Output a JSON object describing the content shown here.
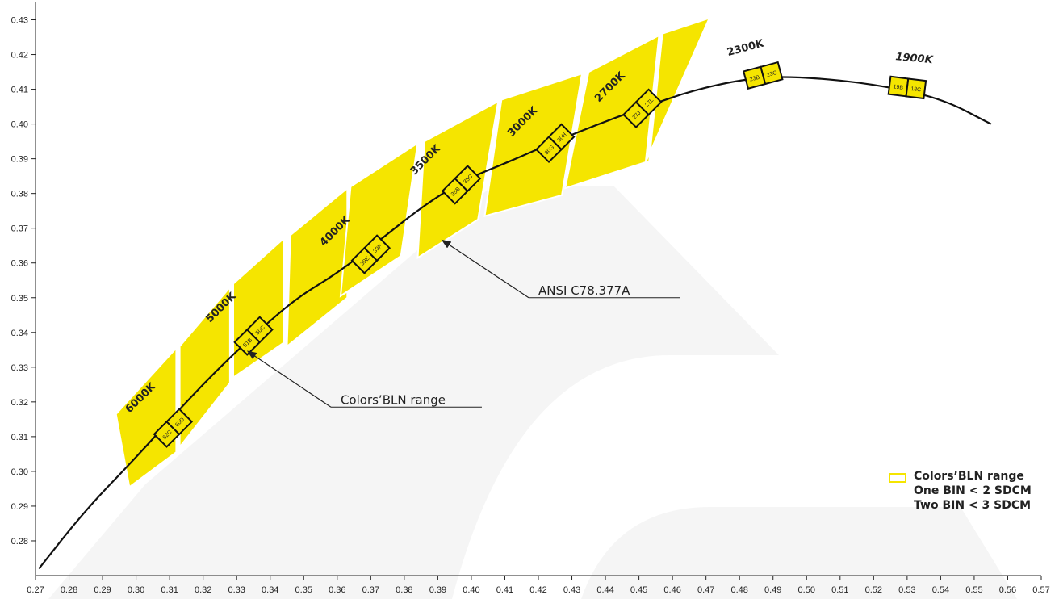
{
  "chart_data": {
    "type": "scatter",
    "title": "",
    "xlabel": "",
    "ylabel": "",
    "xlim": [
      0.27,
      0.57
    ],
    "ylim": [
      0.27,
      0.435
    ],
    "x_ticks": [
      "0.27",
      "0.28",
      "0.29",
      "0.30",
      "0.31",
      "0.32",
      "0.33",
      "0.34",
      "0.35",
      "0.36",
      "0.37",
      "0.38",
      "0.39",
      "0.40",
      "0.41",
      "0.42",
      "0.43",
      "0.44",
      "0.45",
      "0.46",
      "0.47",
      "0.48",
      "0.49",
      "0.50",
      "0.51",
      "0.52",
      "0.53",
      "0.54",
      "0.55",
      "0.56",
      "0.57"
    ],
    "y_ticks": [
      "0.28",
      "0.29",
      "0.30",
      "0.31",
      "0.32",
      "0.33",
      "0.34",
      "0.35",
      "0.36",
      "0.37",
      "0.38",
      "0.39",
      "0.40",
      "0.41",
      "0.42",
      "0.43"
    ],
    "planckian_locus": [
      {
        "x": 0.271,
        "y": 0.272
      },
      {
        "x": 0.285,
        "y": 0.289
      },
      {
        "x": 0.3,
        "y": 0.304
      },
      {
        "x": 0.313,
        "y": 0.318
      },
      {
        "x": 0.325,
        "y": 0.33
      },
      {
        "x": 0.336,
        "y": 0.34
      },
      {
        "x": 0.348,
        "y": 0.35
      },
      {
        "x": 0.36,
        "y": 0.357
      },
      {
        "x": 0.372,
        "y": 0.366
      },
      {
        "x": 0.385,
        "y": 0.376
      },
      {
        "x": 0.398,
        "y": 0.384
      },
      {
        "x": 0.411,
        "y": 0.389
      },
      {
        "x": 0.425,
        "y": 0.395
      },
      {
        "x": 0.438,
        "y": 0.4
      },
      {
        "x": 0.452,
        "y": 0.405
      },
      {
        "x": 0.467,
        "y": 0.41
      },
      {
        "x": 0.485,
        "y": 0.4135
      },
      {
        "x": 0.5,
        "y": 0.4135
      },
      {
        "x": 0.52,
        "y": 0.4115
      },
      {
        "x": 0.54,
        "y": 0.4075
      },
      {
        "x": 0.555,
        "y": 0.4
      }
    ],
    "ansi_regions": [
      {
        "cct": "6000K",
        "poly": [
          [
            0.294,
            0.3165
          ],
          [
            0.312,
            0.3355
          ],
          [
            0.312,
            0.3055
          ],
          [
            0.298,
            0.2955
          ]
        ]
      },
      {
        "cct": "5000K",
        "poly": [
          [
            0.313,
            0.336
          ],
          [
            0.328,
            0.353
          ],
          [
            0.328,
            0.3255
          ],
          [
            0.313,
            0.307
          ]
        ]
      },
      {
        "cct": "5000K",
        "poly": [
          [
            0.329,
            0.354
          ],
          [
            0.344,
            0.367
          ],
          [
            0.344,
            0.337
          ],
          [
            0.329,
            0.327
          ]
        ]
      },
      {
        "cct": "4000K",
        "poly": [
          [
            0.346,
            0.368
          ],
          [
            0.363,
            0.3815
          ],
          [
            0.363,
            0.35
          ],
          [
            0.345,
            0.336
          ]
        ]
      },
      {
        "cct": "4000K",
        "poly": [
          [
            0.364,
            0.382
          ],
          [
            0.384,
            0.3945
          ],
          [
            0.379,
            0.362
          ],
          [
            0.361,
            0.3505
          ]
        ]
      },
      {
        "cct": "3500K",
        "poly": [
          [
            0.386,
            0.395
          ],
          [
            0.408,
            0.4065
          ],
          [
            0.402,
            0.3725
          ],
          [
            0.384,
            0.3615
          ]
        ]
      },
      {
        "cct": "3000K",
        "poly": [
          [
            0.409,
            0.407
          ],
          [
            0.433,
            0.4145
          ],
          [
            0.427,
            0.3795
          ],
          [
            0.404,
            0.3735
          ]
        ]
      },
      {
        "cct": "2700K",
        "poly": [
          [
            0.435,
            0.415
          ],
          [
            0.456,
            0.4255
          ],
          [
            0.452,
            0.389
          ],
          [
            0.428,
            0.3815
          ]
        ]
      },
      {
        "cct": "2700K",
        "poly": [
          [
            0.457,
            0.426
          ],
          [
            0.471,
            0.4305
          ],
          [
            0.452,
            0.389
          ],
          [
            0.453,
            0.389
          ]
        ]
      }
    ],
    "bins": [
      {
        "cct": "6000K",
        "labels": [
          "62C",
          "60D"
        ],
        "x": 0.311,
        "y": 0.3125,
        "angle": -45
      },
      {
        "cct": "5000K",
        "labels": [
          "51B",
          "50C"
        ],
        "x": 0.335,
        "y": 0.339,
        "angle": -45
      },
      {
        "cct": "4000K",
        "labels": [
          "39E",
          "39F"
        ],
        "x": 0.37,
        "y": 0.3625,
        "angle": -45
      },
      {
        "cct": "3500K",
        "labels": [
          "35B",
          "35C"
        ],
        "x": 0.397,
        "y": 0.3825,
        "angle": -45
      },
      {
        "cct": "3000K",
        "labels": [
          "30G",
          "30H"
        ],
        "x": 0.425,
        "y": 0.3945,
        "angle": -45
      },
      {
        "cct": "2700K",
        "labels": [
          "27J",
          "27L"
        ],
        "x": 0.451,
        "y": 0.4045,
        "angle": -45
      },
      {
        "cct": "2300K",
        "labels": [
          "23B",
          "23C"
        ],
        "x": 0.487,
        "y": 0.414,
        "angle": -15
      },
      {
        "cct": "1900K",
        "labels": [
          "19B",
          "18C"
        ],
        "x": 0.53,
        "y": 0.4105,
        "angle": 7
      }
    ],
    "cct_labels": [
      {
        "text": "6000K",
        "x": 0.302,
        "y": 0.3205,
        "angle": -45
      },
      {
        "text": "5000K",
        "x": 0.326,
        "y": 0.3465,
        "angle": -45
      },
      {
        "text": "4000K",
        "x": 0.36,
        "y": 0.3685,
        "angle": -45
      },
      {
        "text": "3500K",
        "x": 0.387,
        "y": 0.389,
        "angle": -45
      },
      {
        "text": "3000K",
        "x": 0.416,
        "y": 0.4,
        "angle": -45
      },
      {
        "text": "2700K",
        "x": 0.442,
        "y": 0.41,
        "angle": -45
      },
      {
        "text": "2300K",
        "x": 0.482,
        "y": 0.421,
        "angle": -15
      },
      {
        "text": "1900K",
        "x": 0.532,
        "y": 0.418,
        "angle": 5
      }
    ],
    "annotations": [
      {
        "text": "Colors’BLN range",
        "tip_x": 0.334,
        "tip_y": 0.3345,
        "text_x": 0.361,
        "text_y": 0.3185
      },
      {
        "text": "ANSI C78.377A",
        "tip_x": 0.392,
        "tip_y": 0.3665,
        "text_x": 0.42,
        "text_y": 0.35
      }
    ],
    "legend": {
      "position": "bottom-right",
      "swatch_color": "#f5e500",
      "lines": [
        "Colors’BLN range",
        "One BIN < 2 SDCM",
        "Two BIN < 3 SDCM"
      ]
    },
    "colors": {
      "region_fill": "#f5e500",
      "bin_fill": "#f5e500",
      "bin_stroke": "#111111",
      "curve": "#111111",
      "watermark": "#f5f5f5"
    }
  }
}
